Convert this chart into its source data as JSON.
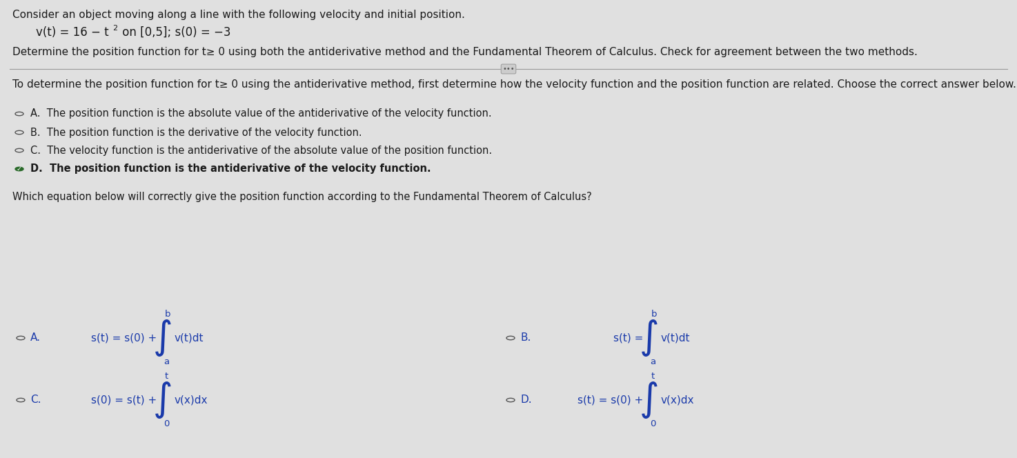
{
  "bg_color": "#e0e0e0",
  "text_color": "#1a1a1a",
  "blue_color": "#1a3aaa",
  "radio_color": "#555555",
  "checked_color": "#2a6a2a",
  "title_line1": "Consider an object moving along a line with the following velocity and initial position.",
  "formula_v": "v(t) = 16 − t",
  "formula_exp": "2",
  "formula_rest": " on [0,5]; s(0) = −3",
  "determine_line": "Determine the position function for t≥ 0 using both the antiderivative method and the Fundamental Theorem of Calculus. Check for agreement between the two methods.",
  "section1_intro": "To determine the position function for t≥ 0 using the antiderivative method, first determine how the velocity function and the position function are related. Choose the correct answer below.",
  "optA_text": "A.  The position function is the absolute value of the antiderivative of the velocity function.",
  "optB_text": "B.  The position function is the derivative of the velocity function.",
  "optC_text": "C.  The velocity function is the antiderivative of the absolute value of the position function.",
  "optD_text": "D.  The position function is the antiderivative of the velocity function.",
  "section2_intro": "Which equation below will correctly give the position function according to the Fundamental Theorem of Calculus?",
  "eq_A_lhs": "s(t) = s(0) +",
  "eq_A_top": "b",
  "eq_A_bot": "a",
  "eq_A_rhs": "v(t)dt",
  "eq_B_lhs": "s(t) =",
  "eq_B_top": "b",
  "eq_B_bot": "a",
  "eq_B_rhs": "v(t)dt",
  "eq_C_lhs": "s(0) = s(t) +",
  "eq_C_top": "t",
  "eq_C_bot": "0",
  "eq_C_rhs": "v(x)dx",
  "eq_D_lhs": "s(t) = s(0) +",
  "eq_D_top": "t",
  "eq_D_bot": "0",
  "eq_D_rhs": "v(x)dx",
  "fs_title": 11.0,
  "fs_formula": 12.0,
  "fs_body": 10.5,
  "fs_eq": 11.0,
  "fs_int": 28,
  "fs_bound": 9.5,
  "fig_width": 14.74,
  "fig_height": 6.64,
  "dpi": 100
}
